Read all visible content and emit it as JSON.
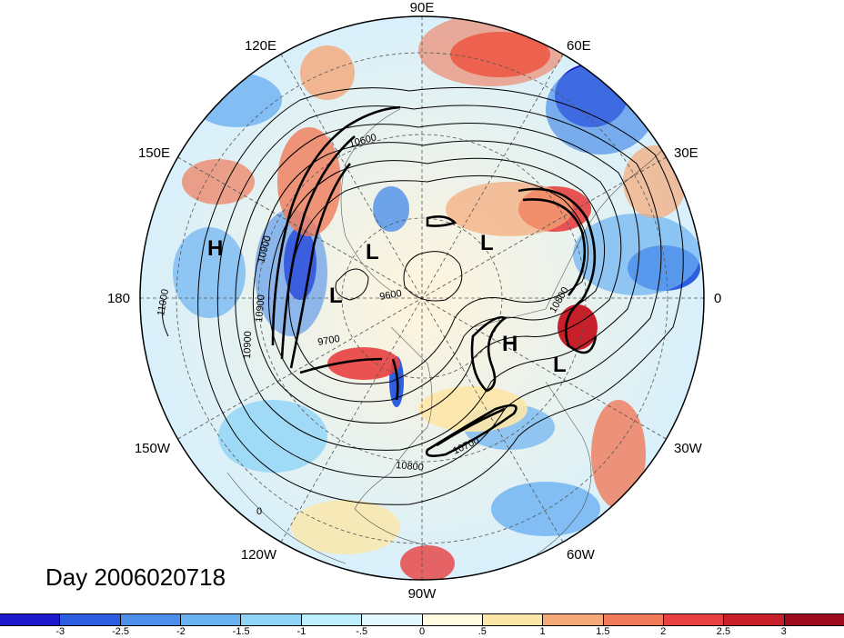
{
  "title": "Day 2006020718",
  "longitude_labels": [
    "90E",
    "60E",
    "30E",
    "0",
    "30W",
    "60W",
    "90W",
    "120W",
    "150W",
    "180",
    "150E",
    "120E"
  ],
  "pressure_centers": [
    "H",
    "L",
    "L",
    "L",
    "H",
    "L"
  ],
  "contour_labels": [
    "10600",
    "10900",
    "10900",
    "10900",
    "11000",
    "9600",
    "9700",
    "10800",
    "10700",
    "10800",
    "0"
  ],
  "colorbar": {
    "tick_labels": [
      "-3",
      "-2.5",
      "-2",
      "-1.5",
      "-1",
      "-.5",
      "0",
      ".5",
      "1",
      "1.5",
      "2",
      "2.5",
      "3"
    ],
    "colors": [
      "#1e18cc",
      "#2d5ee0",
      "#4c8eea",
      "#6bb2f2",
      "#8fd4f7",
      "#bdeefd",
      "#e3f8ff",
      "#fffbe0",
      "#fde7a8",
      "#f5a878",
      "#f07a5a",
      "#e84040",
      "#c8202a",
      "#9e0a1e"
    ]
  }
}
